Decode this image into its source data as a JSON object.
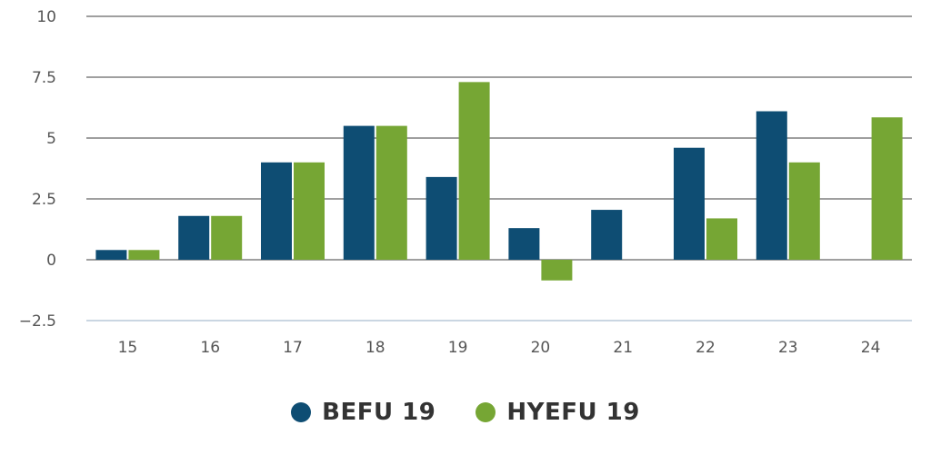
{
  "chart_data": {
    "type": "bar",
    "categories": [
      "15",
      "16",
      "17",
      "18",
      "19",
      "20",
      "21",
      "22",
      "23",
      "24"
    ],
    "series": [
      {
        "name": "BEFU 19",
        "color": "#0e4d73",
        "values": [
          0.4,
          1.8,
          4.0,
          5.5,
          3.4,
          1.3,
          2.05,
          4.6,
          6.1,
          null
        ]
      },
      {
        "name": "HYEFU 19",
        "color": "#76a634",
        "values": [
          0.4,
          1.8,
          4.0,
          5.5,
          7.3,
          -0.85,
          null,
          1.7,
          4.0,
          5.85
        ]
      }
    ],
    "ylim": [
      -2.5,
      10
    ],
    "yticks": [
      "10",
      "7.5",
      "5",
      "2.5",
      "0",
      "−2.5"
    ],
    "ytick_values": [
      10,
      7.5,
      5,
      2.5,
      0,
      -2.5
    ],
    "grid": true,
    "legend_position": "bottom-center",
    "gridline_color": "#666666",
    "baseline_color": "#b8c8d8"
  }
}
